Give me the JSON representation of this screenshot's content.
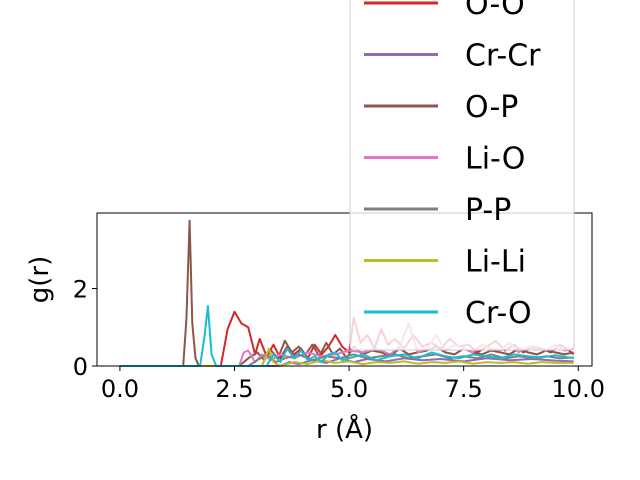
{
  "chart_data": {
    "type": "line",
    "title": "",
    "xlabel": "r (Å)",
    "ylabel": "g(r)",
    "xlim": [
      -0.5,
      10.3
    ],
    "ylim": [
      0,
      3.95
    ],
    "xticks": [
      0.0,
      2.5,
      5.0,
      7.5,
      10.0
    ],
    "xtick_labels": [
      "0.0",
      "2.5",
      "5.0",
      "7.5",
      "10.0"
    ],
    "yticks": [
      0,
      2
    ],
    "ytick_labels": [
      "0",
      "2"
    ],
    "grid": false,
    "legend_placement": "upper-right (extends above plot)",
    "series": [
      {
        "name": "O-O",
        "color": "#d62728",
        "x": [
          0,
          2.2,
          2.35,
          2.5,
          2.65,
          2.8,
          2.95,
          3.05,
          3.2,
          3.35,
          3.5,
          3.65,
          3.8,
          3.95,
          4.1,
          4.25,
          4.4,
          4.55,
          4.7,
          4.85,
          5.0,
          5.1,
          5.25,
          5.4,
          5.55,
          5.7,
          5.85,
          6.0,
          6.2,
          6.4,
          6.6,
          6.8,
          7.0,
          7.2,
          7.4,
          7.6,
          7.8,
          8.0,
          8.2,
          8.4,
          8.6,
          8.8,
          9.0,
          9.2,
          9.4,
          9.6,
          9.8,
          9.9
        ],
        "y": [
          0,
          0,
          0.95,
          1.4,
          1.1,
          1.0,
          0.3,
          0.7,
          0.25,
          0.55,
          0.2,
          0.5,
          0.3,
          0.45,
          0.2,
          0.55,
          0.3,
          0.5,
          0.8,
          0.5,
          0.35,
          1.25,
          0.6,
          0.8,
          0.45,
          0.95,
          0.55,
          0.7,
          0.45,
          0.8,
          0.5,
          0.6,
          0.45,
          0.7,
          0.5,
          0.55,
          0.35,
          0.5,
          0.65,
          0.4,
          0.55,
          0.35,
          0.5,
          0.45,
          0.35,
          0.55,
          0.4,
          0.3
        ]
      },
      {
        "name": "Cr-Cr",
        "color": "#9467bd",
        "x": [
          0,
          3.5,
          3.7,
          3.9,
          4.2,
          4.5,
          4.8,
          5.1,
          5.4,
          5.8,
          6.2,
          6.6,
          7.0,
          7.5,
          8.0,
          8.5,
          9.0,
          9.5,
          9.9
        ],
        "y": [
          0,
          0,
          0.1,
          0.05,
          0.15,
          0.08,
          0.2,
          0.1,
          0.18,
          0.12,
          0.2,
          0.15,
          0.18,
          0.12,
          0.2,
          0.15,
          0.18,
          0.14,
          0.12
        ]
      },
      {
        "name": "O-P",
        "color": "#8c564b",
        "x": [
          0,
          1.38,
          1.45,
          1.52,
          1.58,
          1.65,
          1.72,
          2.6,
          2.8,
          3.0,
          3.15,
          3.3,
          3.45,
          3.6,
          3.75,
          3.9,
          4.05,
          4.2,
          4.35,
          4.5,
          4.65,
          4.8,
          4.95,
          5.1,
          5.3,
          5.5,
          5.7,
          5.9,
          6.1,
          6.3,
          6.5,
          6.7,
          6.9,
          7.1,
          7.3,
          7.5,
          7.7,
          7.9,
          8.1,
          8.3,
          8.5,
          8.7,
          8.9,
          9.1,
          9.3,
          9.5,
          9.7,
          9.9
        ],
        "y": [
          0,
          0,
          1.2,
          3.75,
          1.1,
          0.2,
          0,
          0,
          0.2,
          0.35,
          0.15,
          0.4,
          0.2,
          0.65,
          0.35,
          0.5,
          0.3,
          0.55,
          0.25,
          0.6,
          0.3,
          0.45,
          0.2,
          0.5,
          0.3,
          0.4,
          0.35,
          0.25,
          0.45,
          0.3,
          0.35,
          0.4,
          0.5,
          0.35,
          0.3,
          0.45,
          0.35,
          0.3,
          0.4,
          0.35,
          0.3,
          0.45,
          0.35,
          0.3,
          0.4,
          0.35,
          0.3,
          0.35
        ]
      },
      {
        "name": "Li-O",
        "color": "#e377c2",
        "x": [
          0,
          2.6,
          2.7,
          2.8,
          2.95,
          3.1,
          3.3,
          3.5,
          3.8,
          4.1,
          4.4,
          4.7,
          5.0,
          5.3,
          5.6,
          5.9,
          6.1,
          6.3,
          6.5,
          6.7,
          6.9,
          7.1,
          7.3,
          7.5,
          7.7,
          7.9,
          8.1,
          8.3,
          8.5,
          8.7,
          8.9,
          9.1,
          9.3,
          9.5,
          9.7,
          9.9
        ],
        "y": [
          0,
          0,
          0.35,
          0.4,
          0.1,
          0.3,
          0.15,
          0.3,
          0.2,
          0.35,
          0.25,
          0.3,
          0.4,
          0.35,
          0.45,
          0.3,
          0.5,
          1.1,
          0.35,
          0.45,
          0.8,
          0.4,
          0.55,
          0.45,
          0.35,
          0.55,
          0.45,
          0.4,
          0.6,
          0.35,
          0.5,
          0.45,
          0.4,
          0.55,
          0.4,
          0.45
        ]
      },
      {
        "name": "P-P",
        "color": "#7f7f7f",
        "x": [
          0,
          2.8,
          3.0,
          3.2,
          3.4,
          3.6,
          3.9,
          4.2,
          4.5,
          4.8,
          5.1,
          5.4,
          5.7,
          6.0,
          6.3,
          6.6,
          6.9,
          7.2,
          7.5,
          7.8,
          8.1,
          8.4,
          8.7,
          9.0,
          9.3,
          9.6,
          9.9
        ],
        "y": [
          0,
          0,
          0.15,
          0.3,
          0.1,
          0.2,
          0.3,
          0.15,
          0.25,
          0.2,
          0.3,
          0.2,
          0.25,
          0.3,
          0.2,
          0.25,
          0.3,
          0.2,
          0.25,
          0.2,
          0.3,
          0.2,
          0.25,
          0.2,
          0.25,
          0.2,
          0.22
        ]
      },
      {
        "name": "Li-Li",
        "color": "#bcbd22",
        "x": [
          0,
          3.1,
          3.25,
          3.35,
          3.5,
          3.8,
          4.1,
          4.4,
          4.7,
          5.0,
          5.3,
          5.6,
          5.9,
          6.2,
          6.5,
          6.8,
          7.1,
          7.4,
          7.7,
          8.0,
          8.3,
          8.6,
          8.9,
          9.2,
          9.5,
          9.9
        ],
        "y": [
          0,
          0,
          0.45,
          0.1,
          0.0,
          0.1,
          0.05,
          0.15,
          0.08,
          0.12,
          0.05,
          0.1,
          0.08,
          0.12,
          0.06,
          0.1,
          0.08,
          0.12,
          0.06,
          0.1,
          0.08,
          0.1,
          0.06,
          0.1,
          0.08,
          0.08
        ]
      },
      {
        "name": "Cr-O",
        "color": "#17becf",
        "x": [
          0,
          1.75,
          1.85,
          1.92,
          2.0,
          2.1,
          3.2,
          3.35,
          3.5,
          3.65,
          3.8,
          3.95,
          4.1,
          4.25,
          4.4,
          4.55,
          4.7,
          4.85,
          5.0,
          5.3,
          5.6,
          5.9,
          6.2,
          6.5,
          6.8,
          7.1,
          7.4,
          7.7,
          8.0,
          8.3,
          8.6,
          8.9,
          9.2,
          9.5,
          9.9
        ],
        "y": [
          0,
          0,
          0.8,
          1.55,
          0.3,
          0,
          0,
          0.3,
          0.1,
          0.45,
          0.2,
          0.4,
          0.15,
          0.25,
          0.1,
          0.3,
          0.35,
          0.15,
          0.2,
          0.3,
          0.15,
          0.25,
          0.3,
          0.2,
          0.35,
          0.25,
          0.2,
          0.3,
          0.25,
          0.2,
          0.3,
          0.25,
          0.22,
          0.28,
          0.2
        ]
      }
    ]
  }
}
